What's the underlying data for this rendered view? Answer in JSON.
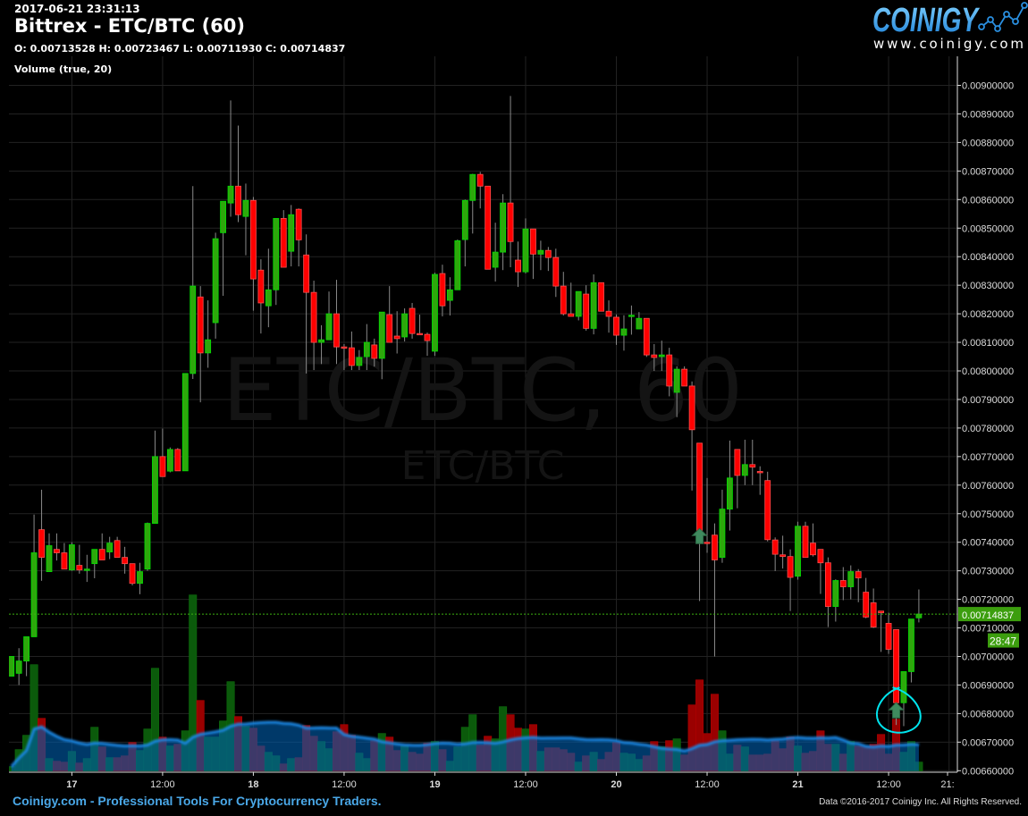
{
  "header": {
    "timestamp": "2017-06-21 23:31:13",
    "title": "Bittrex - ETC/BTC (60)",
    "ohlc": "O: 0.00713528 H: 0.00723467 L: 0.00711930 C: 0.00714837",
    "volume_indicator": "Volume (true, 20)"
  },
  "logo": {
    "brand": "COINIGY",
    "url": "www.coinigy.com"
  },
  "footer": {
    "tagline": "Coinigy.com - Professional Tools For Cryptocurrency Traders.",
    "copyright": "Data ©2016-2017 Coinigy Inc. All Rights Reserved."
  },
  "colors": {
    "up": "#2ea70c",
    "up_border": "#00e000",
    "down": "#ff0000",
    "down_border": "#ff5050",
    "volume_ma": "#1e88e5",
    "last_price": "#3c9e0e",
    "annotation": "#00e5ee",
    "marker": "#3f8a5e"
  },
  "chart_data": {
    "type": "candlestick",
    "symbol": "ETC/BTC",
    "interval": "60",
    "watermark": "ETC/BTC, 60",
    "watermark_sub": "ETC/BTC",
    "ylim": [
      0.0066,
      0.009
    ],
    "grid": true,
    "y_ticks": [
      "0.00900000",
      "0.00890000",
      "0.00880000",
      "0.00870000",
      "0.00860000",
      "0.00850000",
      "0.00840000",
      "0.00830000",
      "0.00820000",
      "0.00810000",
      "0.00800000",
      "0.00790000",
      "0.00780000",
      "0.00770000",
      "0.00760000",
      "0.00750000",
      "0.00740000",
      "0.00730000",
      "0.00720000",
      "0.00710000",
      "0.00700000",
      "0.00690000",
      "0.00680000",
      "0.00670000",
      "0.00660000"
    ],
    "x_ticks": [
      {
        "label": "17",
        "t": "06-17 00:00",
        "day": true
      },
      {
        "label": "12:00",
        "t": "06-17 12:00",
        "day": false
      },
      {
        "label": "18",
        "t": "06-18 00:00",
        "day": true
      },
      {
        "label": "12:00",
        "t": "06-18 12:00",
        "day": false
      },
      {
        "label": "19",
        "t": "06-19 00:00",
        "day": true
      },
      {
        "label": "12:00",
        "t": "06-19 12:00",
        "day": false
      },
      {
        "label": "20",
        "t": "06-20 00:00",
        "day": true
      },
      {
        "label": "12:00",
        "t": "06-20 12:00",
        "day": false
      },
      {
        "label": "21",
        "t": "06-21 00:00",
        "day": true
      },
      {
        "label": "12:00",
        "t": "06-21 12:00",
        "day": false
      },
      {
        "label": "21:",
        "t": "06-21 20:00",
        "day": false
      }
    ],
    "last_price": {
      "value": 0.00714837,
      "label": "0.00714837",
      "countdown": "28:47"
    },
    "volume_ma_period": 20,
    "columns": [
      "time",
      "open",
      "high",
      "low",
      "close",
      "volume"
    ],
    "candles": [
      [
        "06-16 16:00",
        0.006931,
        0.007,
        0.006931,
        0.007,
        5
      ],
      [
        "06-16 17:00",
        0.006941,
        0.007029,
        0.0069,
        0.006984,
        24
      ],
      [
        "06-16 18:00",
        0.006984,
        0.007069,
        0.006931,
        0.007069,
        40
      ],
      [
        "06-16 19:00",
        0.007069,
        0.007497,
        0.007069,
        0.007363,
        119
      ],
      [
        "06-16 20:00",
        0.007444,
        0.007584,
        0.007265,
        0.007347,
        59
      ],
      [
        "06-16 21:00",
        0.007297,
        0.007431,
        0.007297,
        0.007388,
        14
      ],
      [
        "06-16 22:00",
        0.007375,
        0.007431,
        0.007336,
        0.007363,
        11
      ],
      [
        "06-16 23:00",
        0.007363,
        0.007397,
        0.007306,
        0.007306,
        10
      ],
      [
        "06-17 00:00",
        0.007303,
        0.0074,
        0.0073,
        0.007391,
        22
      ],
      [
        "06-17 01:00",
        0.007319,
        0.007391,
        0.00729,
        0.007303,
        9
      ],
      [
        "06-17 02:00",
        0.007303,
        0.007356,
        0.007261,
        0.007306,
        14
      ],
      [
        "06-17 03:00",
        0.007325,
        0.007375,
        0.007274,
        0.007375,
        49
      ],
      [
        "06-17 04:00",
        0.007375,
        0.007431,
        0.007338,
        0.007338,
        27
      ],
      [
        "06-17 05:00",
        0.007366,
        0.007419,
        0.007341,
        0.007397,
        15
      ],
      [
        "06-17 06:00",
        0.007406,
        0.007419,
        0.007347,
        0.007347,
        15
      ],
      [
        "06-17 07:00",
        0.007347,
        0.007384,
        0.00729,
        0.007325,
        17
      ],
      [
        "06-17 08:00",
        0.007325,
        0.007325,
        0.007249,
        0.007256,
        32
      ],
      [
        "06-17 09:00",
        0.007256,
        0.007328,
        0.007218,
        0.007297,
        23
      ],
      [
        "06-17 10:00",
        0.007306,
        0.007469,
        0.0073,
        0.007466,
        47
      ],
      [
        "06-17 11:00",
        0.007466,
        0.007791,
        0.007466,
        0.0077,
        115
      ],
      [
        "06-17 12:00",
        0.0077,
        0.007798,
        0.00763,
        0.00763,
        38
      ],
      [
        "06-17 13:00",
        0.007649,
        0.007732,
        0.007645,
        0.007725,
        28
      ],
      [
        "06-17 14:00",
        0.007725,
        0.00773,
        0.00765,
        0.00765,
        30
      ],
      [
        "06-17 15:00",
        0.00765,
        0.007991,
        0.00765,
        0.007991,
        45
      ],
      [
        "06-17 16:00",
        0.007991,
        0.008647,
        0.007972,
        0.008297,
        197
      ],
      [
        "06-17 17:00",
        0.008259,
        0.008297,
        0.00789,
        0.008063,
        79
      ],
      [
        "06-17 18:00",
        0.008063,
        0.008247,
        0.008011,
        0.008109,
        38
      ],
      [
        "06-17 19:00",
        0.008169,
        0.008484,
        0.008113,
        0.008463,
        38
      ],
      [
        "06-17 20:00",
        0.008484,
        0.008594,
        0.008263,
        0.008594,
        56
      ],
      [
        "06-17 21:00",
        0.008588,
        0.008947,
        0.00854,
        0.008647,
        100
      ],
      [
        "06-17 22:00",
        0.008647,
        0.008859,
        0.008521,
        0.008547,
        61
      ],
      [
        "06-17 23:00",
        0.008541,
        0.008656,
        0.008405,
        0.008597,
        50
      ],
      [
        "06-18 00:00",
        0.008597,
        0.008609,
        0.008211,
        0.008322,
        48
      ],
      [
        "06-18 01:00",
        0.008353,
        0.008391,
        0.008131,
        0.008238,
        28
      ],
      [
        "06-18 02:00",
        0.008228,
        0.008428,
        0.008153,
        0.008284,
        21
      ],
      [
        "06-18 03:00",
        0.008284,
        0.008534,
        0.008231,
        0.008534,
        17
      ],
      [
        "06-18 04:00",
        0.008534,
        0.008563,
        0.008363,
        0.008363,
        8
      ],
      [
        "06-18 05:00",
        0.008419,
        0.008581,
        0.008366,
        0.008547,
        14
      ],
      [
        "06-18 06:00",
        0.008566,
        0.008569,
        0.008366,
        0.008459,
        15
      ],
      [
        "06-18 07:00",
        0.008406,
        0.008478,
        0.007991,
        0.008275,
        51
      ],
      [
        "06-18 08:00",
        0.008275,
        0.008316,
        0.008003,
        0.0081,
        39
      ],
      [
        "06-18 09:00",
        0.0081,
        0.00816,
        0.008024,
        0.008109,
        33
      ],
      [
        "06-18 10:00",
        0.008109,
        0.008278,
        0.008109,
        0.0082,
        25
      ],
      [
        "06-18 11:00",
        0.0082,
        0.008319,
        0.008024,
        0.008084,
        44
      ],
      [
        "06-18 12:00",
        0.008084,
        0.008094,
        0.008003,
        0.008081,
        52
      ],
      [
        "06-18 13:00",
        0.008081,
        0.008138,
        0.008003,
        0.008019,
        40
      ],
      [
        "06-18 14:00",
        0.008019,
        0.008073,
        0.008003,
        0.008047,
        20
      ],
      [
        "06-18 15:00",
        0.00805,
        0.008164,
        0.008003,
        0.0081,
        14
      ],
      [
        "06-18 16:00",
        0.008091,
        0.008113,
        0.008015,
        0.008044,
        34
      ],
      [
        "06-18 17:00",
        0.008044,
        0.008206,
        0.007971,
        0.008206,
        42
      ],
      [
        "06-18 18:00",
        0.008197,
        0.008297,
        0.0081,
        0.0081,
        38
      ],
      [
        "06-18 19:00",
        0.008122,
        0.008209,
        0.008061,
        0.008113,
        23
      ],
      [
        "06-18 20:00",
        0.008119,
        0.008219,
        0.008103,
        0.0082,
        28
      ],
      [
        "06-18 21:00",
        0.008219,
        0.008238,
        0.008113,
        0.008131,
        21
      ],
      [
        "06-18 22:00",
        0.008131,
        0.008197,
        0.008128,
        0.008128,
        19
      ],
      [
        "06-18 23:00",
        0.008128,
        0.008134,
        0.008053,
        0.008106,
        31
      ],
      [
        "06-19 00:00",
        0.008069,
        0.008344,
        0.008053,
        0.008338,
        33
      ],
      [
        "06-19 01:00",
        0.008341,
        0.008372,
        0.008191,
        0.008228,
        24
      ],
      [
        "06-19 02:00",
        0.008247,
        0.008328,
        0.008194,
        0.008284,
        11
      ],
      [
        "06-19 03:00",
        0.008284,
        0.00846,
        0.008284,
        0.008456,
        27
      ],
      [
        "06-19 04:00",
        0.00846,
        0.0086,
        0.008366,
        0.008597,
        49
      ],
      [
        "06-19 05:00",
        0.008597,
        0.00869,
        0.008481,
        0.008688,
        63
      ],
      [
        "06-19 06:00",
        0.008688,
        0.008697,
        0.008569,
        0.008647,
        29
      ],
      [
        "06-19 07:00",
        0.008647,
        0.008647,
        0.008356,
        0.008356,
        39
      ],
      [
        "06-19 08:00",
        0.008363,
        0.008519,
        0.008313,
        0.008416,
        36
      ],
      [
        "06-19 09:00",
        0.008416,
        0.008619,
        0.008353,
        0.008588,
        72
      ],
      [
        "06-19 10:00",
        0.008588,
        0.008963,
        0.008363,
        0.008453,
        63
      ],
      [
        "06-19 11:00",
        0.008388,
        0.008453,
        0.008294,
        0.008347,
        48
      ],
      [
        "06-19 12:00",
        0.008347,
        0.008534,
        0.008341,
        0.008497,
        47
      ],
      [
        "06-19 13:00",
        0.008497,
        0.008497,
        0.008322,
        0.008409,
        52
      ],
      [
        "06-19 14:00",
        0.008409,
        0.008456,
        0.008353,
        0.008422,
        22
      ],
      [
        "06-19 15:00",
        0.008422,
        0.008434,
        0.00835,
        0.008397,
        26
      ],
      [
        "06-19 16:00",
        0.008397,
        0.008428,
        0.008259,
        0.008297,
        26
      ],
      [
        "06-19 17:00",
        0.008297,
        0.008347,
        0.008194,
        0.0082,
        24
      ],
      [
        "06-19 18:00",
        0.0082,
        0.008309,
        0.008191,
        0.008191,
        20
      ],
      [
        "06-19 19:00",
        0.008191,
        0.008278,
        0.008177,
        0.008278,
        10
      ],
      [
        "06-19 20:00",
        0.008269,
        0.0083,
        0.008141,
        0.008149,
        17
      ],
      [
        "06-19 21:00",
        0.008149,
        0.008338,
        0.008128,
        0.008309,
        21
      ],
      [
        "06-19 22:00",
        0.008309,
        0.008309,
        0.008209,
        0.008209,
        13
      ],
      [
        "06-19 23:00",
        0.008209,
        0.008247,
        0.008134,
        0.008191,
        21
      ],
      [
        "06-20 00:00",
        0.008188,
        0.008198,
        0.008091,
        0.008125,
        32
      ],
      [
        "06-20 01:00",
        0.008125,
        0.008195,
        0.008071,
        0.008147,
        20
      ],
      [
        "06-20 02:00",
        0.008194,
        0.008229,
        0.008127,
        0.008195,
        19
      ],
      [
        "06-20 03:00",
        0.008147,
        0.008206,
        0.008147,
        0.008184,
        13
      ],
      [
        "06-20 04:00",
        0.008184,
        0.008184,
        0.008049,
        0.008056,
        17
      ],
      [
        "06-20 05:00",
        0.008056,
        0.008094,
        0.008,
        0.008047,
        33
      ],
      [
        "06-20 06:00",
        0.00805,
        0.008106,
        0.008,
        0.008056,
        27
      ],
      [
        "06-20 07:00",
        0.008056,
        0.008081,
        0.007911,
        0.007947,
        34
      ],
      [
        "06-20 08:00",
        0.007925,
        0.008016,
        0.007838,
        0.008006,
        36
      ],
      [
        "06-20 09:00",
        0.008006,
        0.008016,
        0.007947,
        0.007947,
        18
      ],
      [
        "06-20 10:00",
        0.007947,
        0.007963,
        0.007581,
        0.007794,
        74
      ],
      [
        "06-20 11:00",
        0.007747,
        0.007747,
        0.007194,
        0.0074,
        102
      ],
      [
        "06-20 12:00",
        0.0074,
        0.007625,
        0.007363,
        0.007397,
        42
      ],
      [
        "06-20 13:00",
        0.007425,
        0.007466,
        0.007,
        0.007338,
        86
      ],
      [
        "06-20 14:00",
        0.007347,
        0.007584,
        0.007328,
        0.007516,
        45
      ],
      [
        "06-20 15:00",
        0.007516,
        0.007756,
        0.007441,
        0.007625,
        19
      ],
      [
        "06-20 16:00",
        0.007725,
        0.007725,
        0.007519,
        0.007634,
        29
      ],
      [
        "06-20 17:00",
        0.007634,
        0.007759,
        0.0076,
        0.007672,
        27
      ],
      [
        "06-20 18:00",
        0.007672,
        0.007759,
        0.0076,
        0.007663,
        18
      ],
      [
        "06-20 19:00",
        0.007648,
        0.007666,
        0.007566,
        0.007647,
        18
      ],
      [
        "06-20 20:00",
        0.007616,
        0.007647,
        0.007403,
        0.007409,
        19
      ],
      [
        "06-20 21:00",
        0.007408,
        0.007417,
        0.007299,
        0.007358,
        34
      ],
      [
        "06-20 22:00",
        0.007356,
        0.007423,
        0.007308,
        0.00735,
        25
      ],
      [
        "06-20 23:00",
        0.00735,
        0.007375,
        0.007159,
        0.007277,
        38
      ],
      [
        "06-21 00:00",
        0.007281,
        0.007472,
        0.007269,
        0.007456,
        28
      ],
      [
        "06-21 01:00",
        0.007456,
        0.007472,
        0.007347,
        0.007347,
        20
      ],
      [
        "06-21 02:00",
        0.007397,
        0.007466,
        0.00735,
        0.007356,
        22
      ],
      [
        "06-21 03:00",
        0.007375,
        0.007375,
        0.007219,
        0.007328,
        45
      ],
      [
        "06-21 04:00",
        0.007328,
        0.007347,
        0.007103,
        0.007175,
        30
      ],
      [
        "06-21 05:00",
        0.007175,
        0.00727,
        0.007122,
        0.007266,
        30
      ],
      [
        "06-21 06:00",
        0.007266,
        0.007313,
        0.007197,
        0.007244,
        19
      ],
      [
        "06-21 07:00",
        0.007244,
        0.007319,
        0.0072,
        0.007297,
        33
      ],
      [
        "06-21 08:00",
        0.007297,
        0.007306,
        0.00719,
        0.007275,
        28
      ],
      [
        "06-21 09:00",
        0.007225,
        0.007275,
        0.007134,
        0.007138,
        27
      ],
      [
        "06-21 10:00",
        0.007188,
        0.007238,
        0.0071,
        0.007103,
        30
      ],
      [
        "06-21 11:00",
        0.007159,
        0.007159,
        0.007016,
        0.007153,
        41
      ],
      [
        "06-21 12:00",
        0.007116,
        0.007153,
        0.007009,
        0.007025,
        19
      ],
      [
        "06-21 13:00",
        0.007094,
        0.007094,
        0.00676,
        0.006838,
        58
      ],
      [
        "06-21 14:00",
        0.006838,
        0.006947,
        0.006756,
        0.006947,
        21
      ],
      [
        "06-21 15:00",
        0.006947,
        0.007131,
        0.006909,
        0.007131,
        33
      ],
      [
        "06-21 16:00",
        0.00713528,
        0.00723467,
        0.0071193,
        0.00714837,
        10
      ]
    ],
    "markers": [
      {
        "t": "06-20 11:00",
        "price": 0.00742,
        "shape": "arrow-up"
      },
      {
        "t": "06-21 13:00",
        "price": 0.00681,
        "shape": "arrow-up",
        "circled": true
      }
    ]
  }
}
